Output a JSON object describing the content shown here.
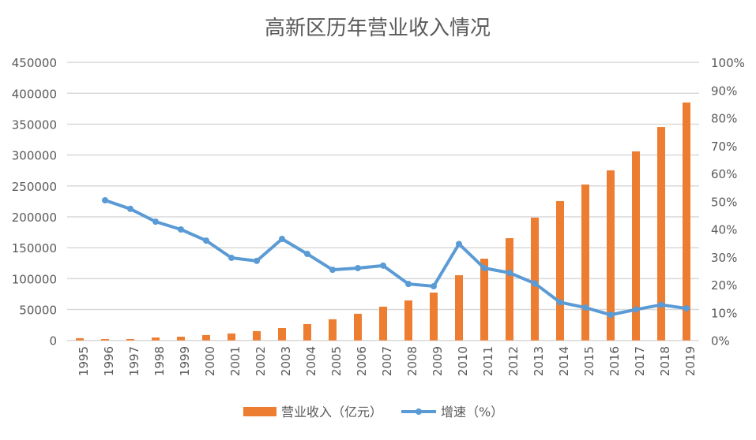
{
  "chart_data": {
    "type": "bar+line",
    "title": "高新区历年营业收入情况",
    "categories": [
      "1995",
      "1996",
      "1997",
      "1998",
      "1999",
      "2000",
      "2001",
      "2002",
      "2003",
      "2004",
      "2005",
      "2006",
      "2007",
      "2008",
      "2009",
      "2010",
      "2011",
      "2012",
      "2013",
      "2014",
      "2015",
      "2016",
      "2017",
      "2018",
      "2019"
    ],
    "series": [
      {
        "name": "营业收入（亿元）",
        "type": "bar",
        "axis": "left",
        "color": "#ED7D31",
        "values": [
          3500,
          2200,
          2200,
          4700,
          6000,
          8700,
          11200,
          15000,
          20000,
          26500,
          34200,
          43100,
          54600,
          64700,
          77400,
          105500,
          132300,
          165500,
          198700,
          225500,
          252300,
          275200,
          305900,
          345400,
          385000
        ]
      },
      {
        "name": "增速（%）",
        "type": "line",
        "axis": "right",
        "color": "#5B9BD5",
        "values": [
          null,
          50.4,
          47.3,
          42.7,
          39.9,
          35.9,
          29.7,
          28.6,
          36.5,
          31.1,
          25.4,
          26.0,
          26.9,
          20.3,
          19.5,
          34.7,
          26.0,
          24.3,
          20.5,
          13.7,
          11.8,
          9.2,
          11.1,
          12.8,
          11.5
        ]
      }
    ],
    "left_axis": {
      "ylim": [
        0,
        450000
      ],
      "ticks": [
        "0",
        "50000",
        "100000",
        "150000",
        "200000",
        "250000",
        "300000",
        "350000",
        "400000",
        "450000"
      ]
    },
    "right_axis": {
      "ylim": [
        0,
        100
      ],
      "ticks": [
        "0%",
        "10%",
        "20%",
        "30%",
        "40%",
        "50%",
        "60%",
        "70%",
        "80%",
        "90%",
        "100%"
      ]
    },
    "grid": true,
    "legend": "bottom"
  }
}
